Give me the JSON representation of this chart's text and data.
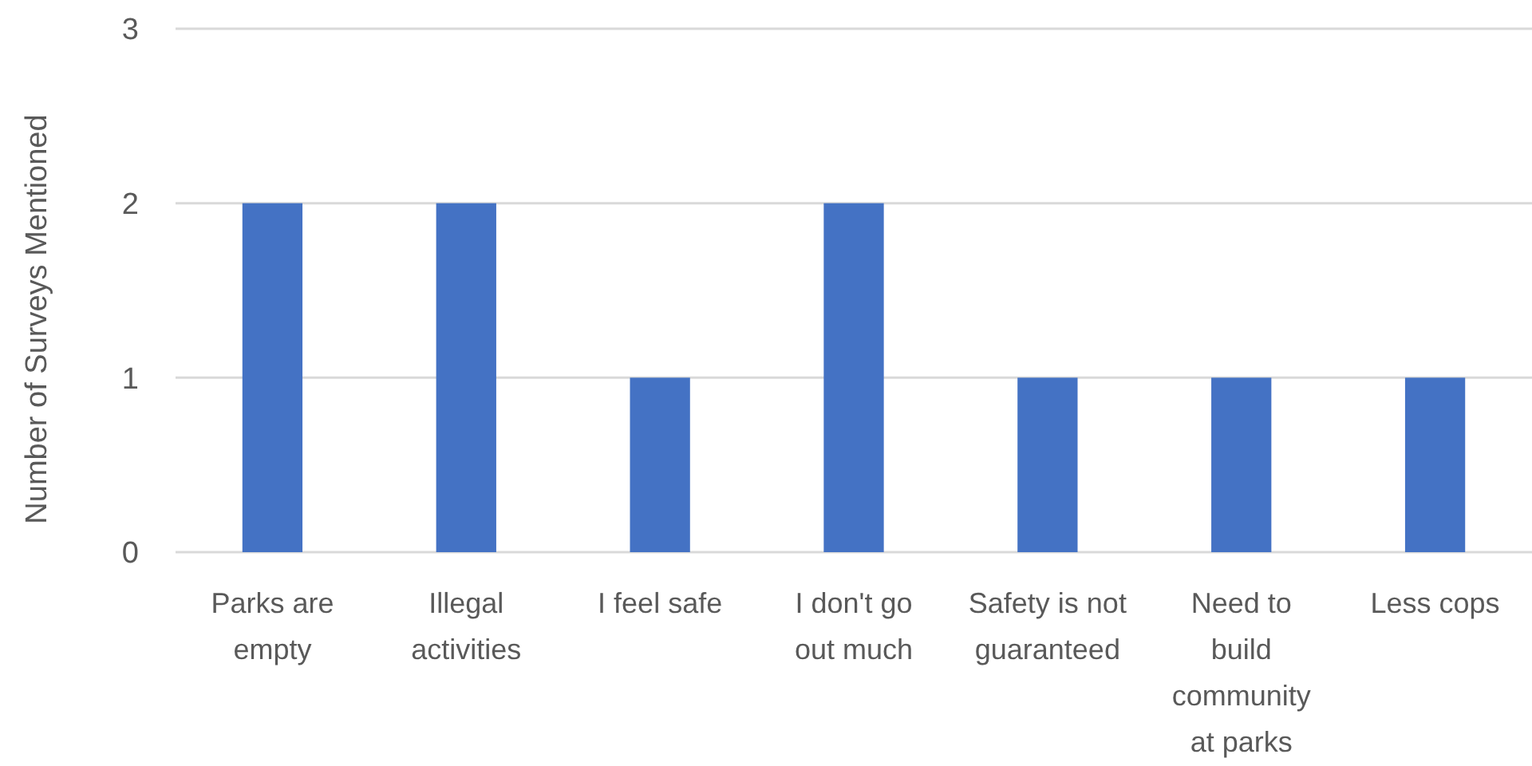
{
  "chart_data": {
    "type": "bar",
    "ylabel": "Number of Surveys Mentioned",
    "categories": [
      "Parks are empty",
      "Illegal activities",
      "I feel safe",
      "I don't go out much",
      "Safety is not guaranteed",
      "Need to build community at parks",
      "Less cops"
    ],
    "values": [
      2,
      2,
      1,
      2,
      1,
      1,
      1
    ],
    "color": "#4472c4",
    "ylim": [
      0,
      3
    ],
    "yticks": [
      0,
      1,
      2,
      3
    ],
    "grid": "y"
  }
}
